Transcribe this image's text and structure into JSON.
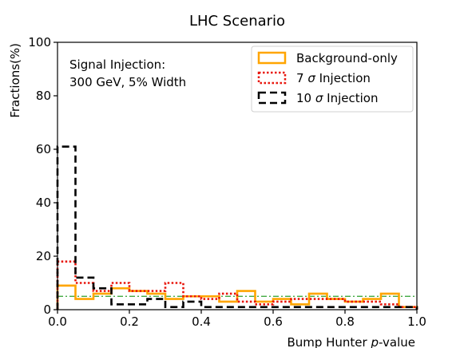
{
  "chart_data": {
    "type": "histogram",
    "title": "LHC Scenario",
    "xlabel_prefix": "Bump Hunter ",
    "xlabel_italic": "p",
    "xlabel_suffix": "-value",
    "ylabel": "Fractions(%)",
    "xlim": [
      0.0,
      1.0
    ],
    "ylim": [
      0,
      100
    ],
    "x_ticks": [
      0.0,
      0.2,
      0.4,
      0.6,
      0.8,
      1.0
    ],
    "x_tick_labels": [
      "0.0",
      "0.2",
      "0.4",
      "0.6",
      "0.8",
      "1.0"
    ],
    "y_ticks": [
      0,
      20,
      40,
      60,
      80,
      100
    ],
    "y_tick_labels": [
      "0",
      "20",
      "40",
      "60",
      "80",
      "100"
    ],
    "bin_edges": [
      0.0,
      0.05,
      0.1,
      0.15,
      0.2,
      0.25,
      0.3,
      0.35,
      0.4,
      0.45,
      0.5,
      0.55,
      0.6,
      0.65,
      0.7,
      0.75,
      0.8,
      0.85,
      0.9,
      0.95,
      1.0
    ],
    "annotation_lines": [
      "Signal Injection:",
      "300 GeV, 5% Width"
    ],
    "reference_line": {
      "y": 5,
      "color": "#2ca02c",
      "style": "dash-dot"
    },
    "legend_position": "top-right",
    "series": [
      {
        "name": "Background-only",
        "color": "#ffa500",
        "style": "solid",
        "values": [
          9,
          4,
          6,
          8,
          7,
          6,
          4,
          5,
          5,
          3,
          7,
          3,
          4,
          2,
          6,
          4,
          3,
          4,
          6,
          1
        ]
      },
      {
        "name": "7 σ Injection",
        "legend_prefix": "7 ",
        "legend_symbol": "σ",
        "legend_suffix": " Injection",
        "color": "#e8150b",
        "style": "dotted",
        "values": [
          18,
          10,
          7,
          10,
          7,
          7,
          10,
          5,
          4,
          6,
          3,
          2,
          3,
          4,
          4,
          4,
          3,
          3,
          2,
          1
        ]
      },
      {
        "name": "10 σ Injection",
        "legend_prefix": "10 ",
        "legend_symbol": "σ",
        "legend_suffix": " Injection",
        "color": "#000000",
        "style": "dashed",
        "values": [
          61,
          12,
          8,
          2,
          2,
          4,
          1,
          3,
          1,
          1,
          1,
          1,
          1,
          1,
          1,
          1,
          1,
          1,
          1,
          1
        ]
      }
    ]
  }
}
